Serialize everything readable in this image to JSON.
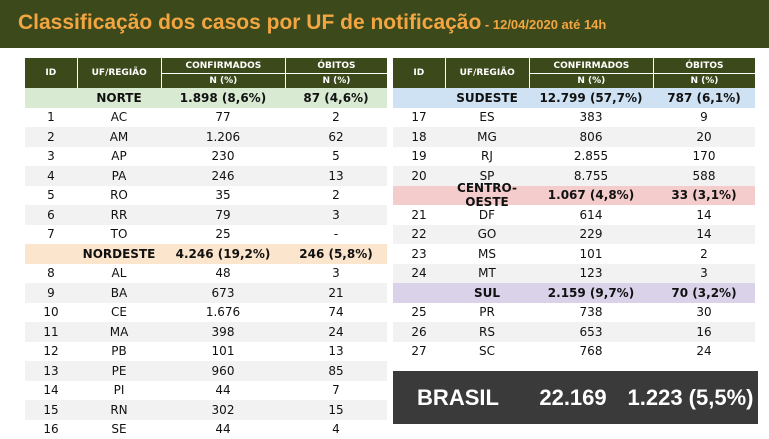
{
  "header": {
    "title": "Classificação dos casos por UF de notificação",
    "subtitle": " - 12/04/2020 até 14h"
  },
  "columns": {
    "id": "ID",
    "uf": "UF/REGIÃO",
    "confirmed": "CONFIRMADOS",
    "confirmed_sub": "N (%)",
    "deaths": "ÓBITOS",
    "deaths_sub": "N (%)"
  },
  "colors": {
    "norte": "#d9ead3",
    "nordeste": "#fce5cd",
    "sudeste": "#cfe2f3",
    "centro_oeste": "#f4cccc",
    "sul": "#d9d2e9",
    "header_bg": "#3c4a1b",
    "title": "#f2a541"
  },
  "left": {
    "regions": [
      {
        "name": "NORTE",
        "confirmed": "1.898 (8,6%)",
        "deaths": "87 (4,6%)",
        "color": "#d9ead3",
        "rows": [
          {
            "id": "1",
            "uf": "AC",
            "conf": "77",
            "ob": "2"
          },
          {
            "id": "2",
            "uf": "AM",
            "conf": "1.206",
            "ob": "62"
          },
          {
            "id": "3",
            "uf": "AP",
            "conf": "230",
            "ob": "5"
          },
          {
            "id": "4",
            "uf": "PA",
            "conf": "246",
            "ob": "13"
          },
          {
            "id": "5",
            "uf": "RO",
            "conf": "35",
            "ob": "2"
          },
          {
            "id": "6",
            "uf": "RR",
            "conf": "79",
            "ob": "3"
          },
          {
            "id": "7",
            "uf": "TO",
            "conf": "25",
            "ob": "-"
          }
        ]
      },
      {
        "name": "NORDESTE",
        "confirmed": "4.246 (19,2%)",
        "deaths": "246 (5,8%)",
        "color": "#fce5cd",
        "rows": [
          {
            "id": "8",
            "uf": "AL",
            "conf": "48",
            "ob": "3"
          },
          {
            "id": "9",
            "uf": "BA",
            "conf": "673",
            "ob": "21"
          },
          {
            "id": "10",
            "uf": "CE",
            "conf": "1.676",
            "ob": "74"
          },
          {
            "id": "11",
            "uf": "MA",
            "conf": "398",
            "ob": "24"
          },
          {
            "id": "12",
            "uf": "PB",
            "conf": "101",
            "ob": "13"
          },
          {
            "id": "13",
            "uf": "PE",
            "conf": "960",
            "ob": "85"
          },
          {
            "id": "14",
            "uf": "PI",
            "conf": "44",
            "ob": "7"
          },
          {
            "id": "15",
            "uf": "RN",
            "conf": "302",
            "ob": "15"
          },
          {
            "id": "16",
            "uf": "SE",
            "conf": "44",
            "ob": "4"
          }
        ]
      }
    ]
  },
  "right": {
    "regions": [
      {
        "name": "SUDESTE",
        "confirmed": "12.799 (57,7%)",
        "deaths": "787 (6,1%)",
        "color": "#cfe2f3",
        "rows": [
          {
            "id": "17",
            "uf": "ES",
            "conf": "383",
            "ob": "9"
          },
          {
            "id": "18",
            "uf": "MG",
            "conf": "806",
            "ob": "20"
          },
          {
            "id": "19",
            "uf": "RJ",
            "conf": "2.855",
            "ob": "170"
          },
          {
            "id": "20",
            "uf": "SP",
            "conf": "8.755",
            "ob": "588"
          }
        ]
      },
      {
        "name": "CENTRO-OESTE",
        "confirmed": "1.067 (4,8%)",
        "deaths": "33 (3,1%)",
        "color": "#f4cccc",
        "rows": [
          {
            "id": "21",
            "uf": "DF",
            "conf": "614",
            "ob": "14"
          },
          {
            "id": "22",
            "uf": "GO",
            "conf": "229",
            "ob": "14"
          },
          {
            "id": "23",
            "uf": "MS",
            "conf": "101",
            "ob": "2"
          },
          {
            "id": "24",
            "uf": "MT",
            "conf": "123",
            "ob": "3"
          }
        ]
      },
      {
        "name": "SUL",
        "confirmed": "2.159 (9,7%)",
        "deaths": "70 (3,2%)",
        "color": "#d9d2e9",
        "rows": [
          {
            "id": "25",
            "uf": "PR",
            "conf": "738",
            "ob": "30"
          },
          {
            "id": "26",
            "uf": "RS",
            "conf": "653",
            "ob": "16"
          },
          {
            "id": "27",
            "uf": "SC",
            "conf": "768",
            "ob": "24"
          }
        ]
      }
    ]
  },
  "total": {
    "label": "BRASIL",
    "confirmed": "22.169",
    "deaths": "1.223 (5,5%)"
  }
}
